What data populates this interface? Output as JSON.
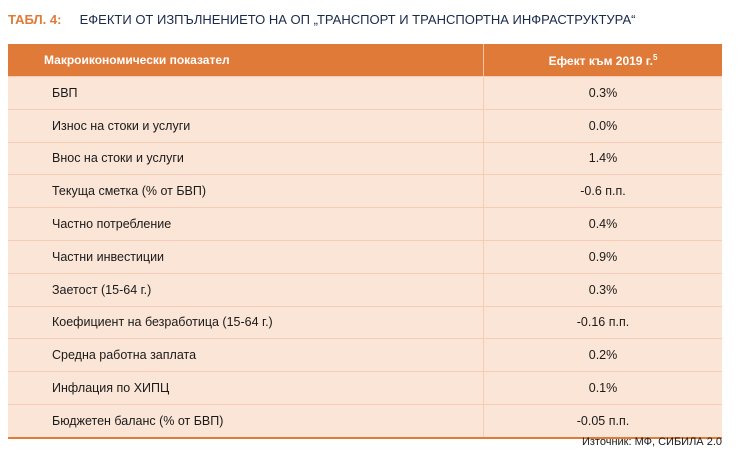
{
  "title": {
    "label": "ТАБЛ. 4:",
    "text": "ЕФЕКТИ ОТ ИЗПЪЛНЕНИЕТО НА ОП „ТРАНСПОРТ И ТРАНСПОРТНА ИНФРАСТРУКТУРА“"
  },
  "table": {
    "headers": {
      "indicator": "Макроикономически показател",
      "effect": "Ефект към 2019 г.",
      "footnote": "5"
    },
    "rows": [
      {
        "indicator": "БВП",
        "value": "0.3%"
      },
      {
        "indicator": "Износ на стоки и услуги",
        "value": "0.0%"
      },
      {
        "indicator": "Внос на стоки и услуги",
        "value": "1.4%"
      },
      {
        "indicator": "Текуща сметка (% от БВП)",
        "value": "-0.6 п.п."
      },
      {
        "indicator": "Частно потребление",
        "value": "0.4%"
      },
      {
        "indicator": "Частни инвестиции",
        "value": "0.9%"
      },
      {
        "indicator": "Заетост (15-64 г.)",
        "value": "0.3%"
      },
      {
        "indicator": "Коефициент на безработица (15-64 г.)",
        "value": "-0.16 п.п."
      },
      {
        "indicator": "Средна работна заплата",
        "value": "0.2%"
      },
      {
        "indicator": "Инфлация по ХИПЦ",
        "value": "0.1%"
      },
      {
        "indicator": "Бюджетен баланс (% от БВП)",
        "value": "-0.05 п.п."
      }
    ]
  },
  "source": "Източник: МФ, СИБИЛА 2.0",
  "colors": {
    "accent": "#e07a38",
    "row_bg": "#fbe5d6",
    "title_text": "#1a2a4a"
  }
}
